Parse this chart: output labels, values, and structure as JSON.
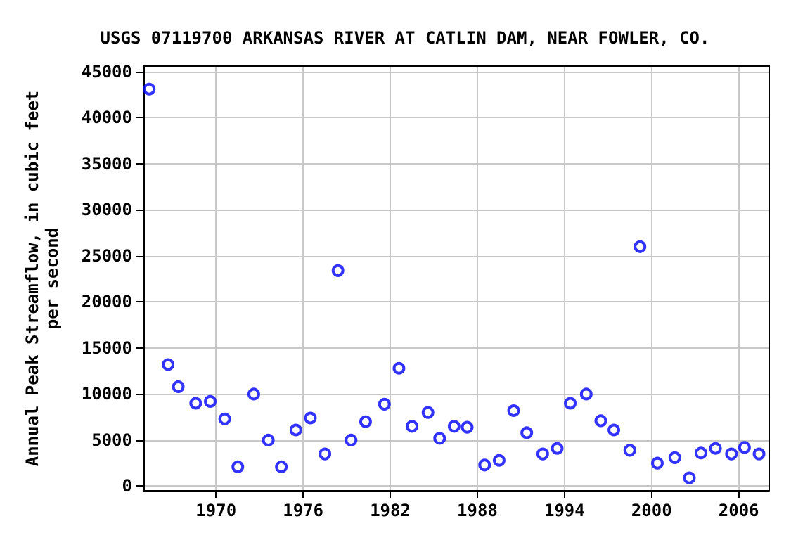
{
  "chart_data": {
    "type": "scatter",
    "title": "USGS 07119700 ARKANSAS RIVER AT CATLIN DAM, NEAR FOWLER, CO.",
    "ylabel": "Annual Peak Streamflow, in cubic feet\nper second",
    "x": [
      1965.4,
      1966.7,
      1967.4,
      1968.6,
      1969.6,
      1970.6,
      1971.5,
      1972.6,
      1973.6,
      1974.5,
      1975.5,
      1976.5,
      1977.5,
      1978.4,
      1979.3,
      1980.3,
      1981.6,
      1982.6,
      1983.5,
      1984.6,
      1985.4,
      1986.4,
      1987.3,
      1988.5,
      1989.5,
      1990.5,
      1991.4,
      1992.5,
      1993.5,
      1994.4,
      1995.5,
      1996.5,
      1997.4,
      1998.5,
      1999.2,
      2000.4,
      2001.6,
      2002.6,
      2003.4,
      2004.4,
      2005.5,
      2006.4,
      2007.4
    ],
    "series": [
      {
        "color": "#0000ff",
        "values": [
          43100,
          13200,
          10800,
          9000,
          9200,
          7300,
          2100,
          10000,
          5000,
          2100,
          6100,
          7400,
          3500,
          23400,
          5000,
          7000,
          8900,
          12800,
          6500,
          8000,
          5200,
          6500,
          6400,
          2300,
          2800,
          8200,
          5800,
          3500,
          4100,
          9000,
          10000,
          7100,
          6100,
          3900,
          26000,
          2500,
          3100,
          900,
          3600,
          4100,
          3500,
          4200,
          3500
        ]
      }
    ],
    "xlim": [
      1965,
      2008.1
    ],
    "xticks": [
      1970,
      1976,
      1982,
      1988,
      1994,
      2000,
      2006
    ],
    "ylim": [
      -500,
      45600
    ],
    "yticks": [
      0,
      5000,
      10000,
      15000,
      20000,
      25000,
      30000,
      35000,
      40000,
      45000
    ],
    "grid": true,
    "marker": "circle"
  }
}
